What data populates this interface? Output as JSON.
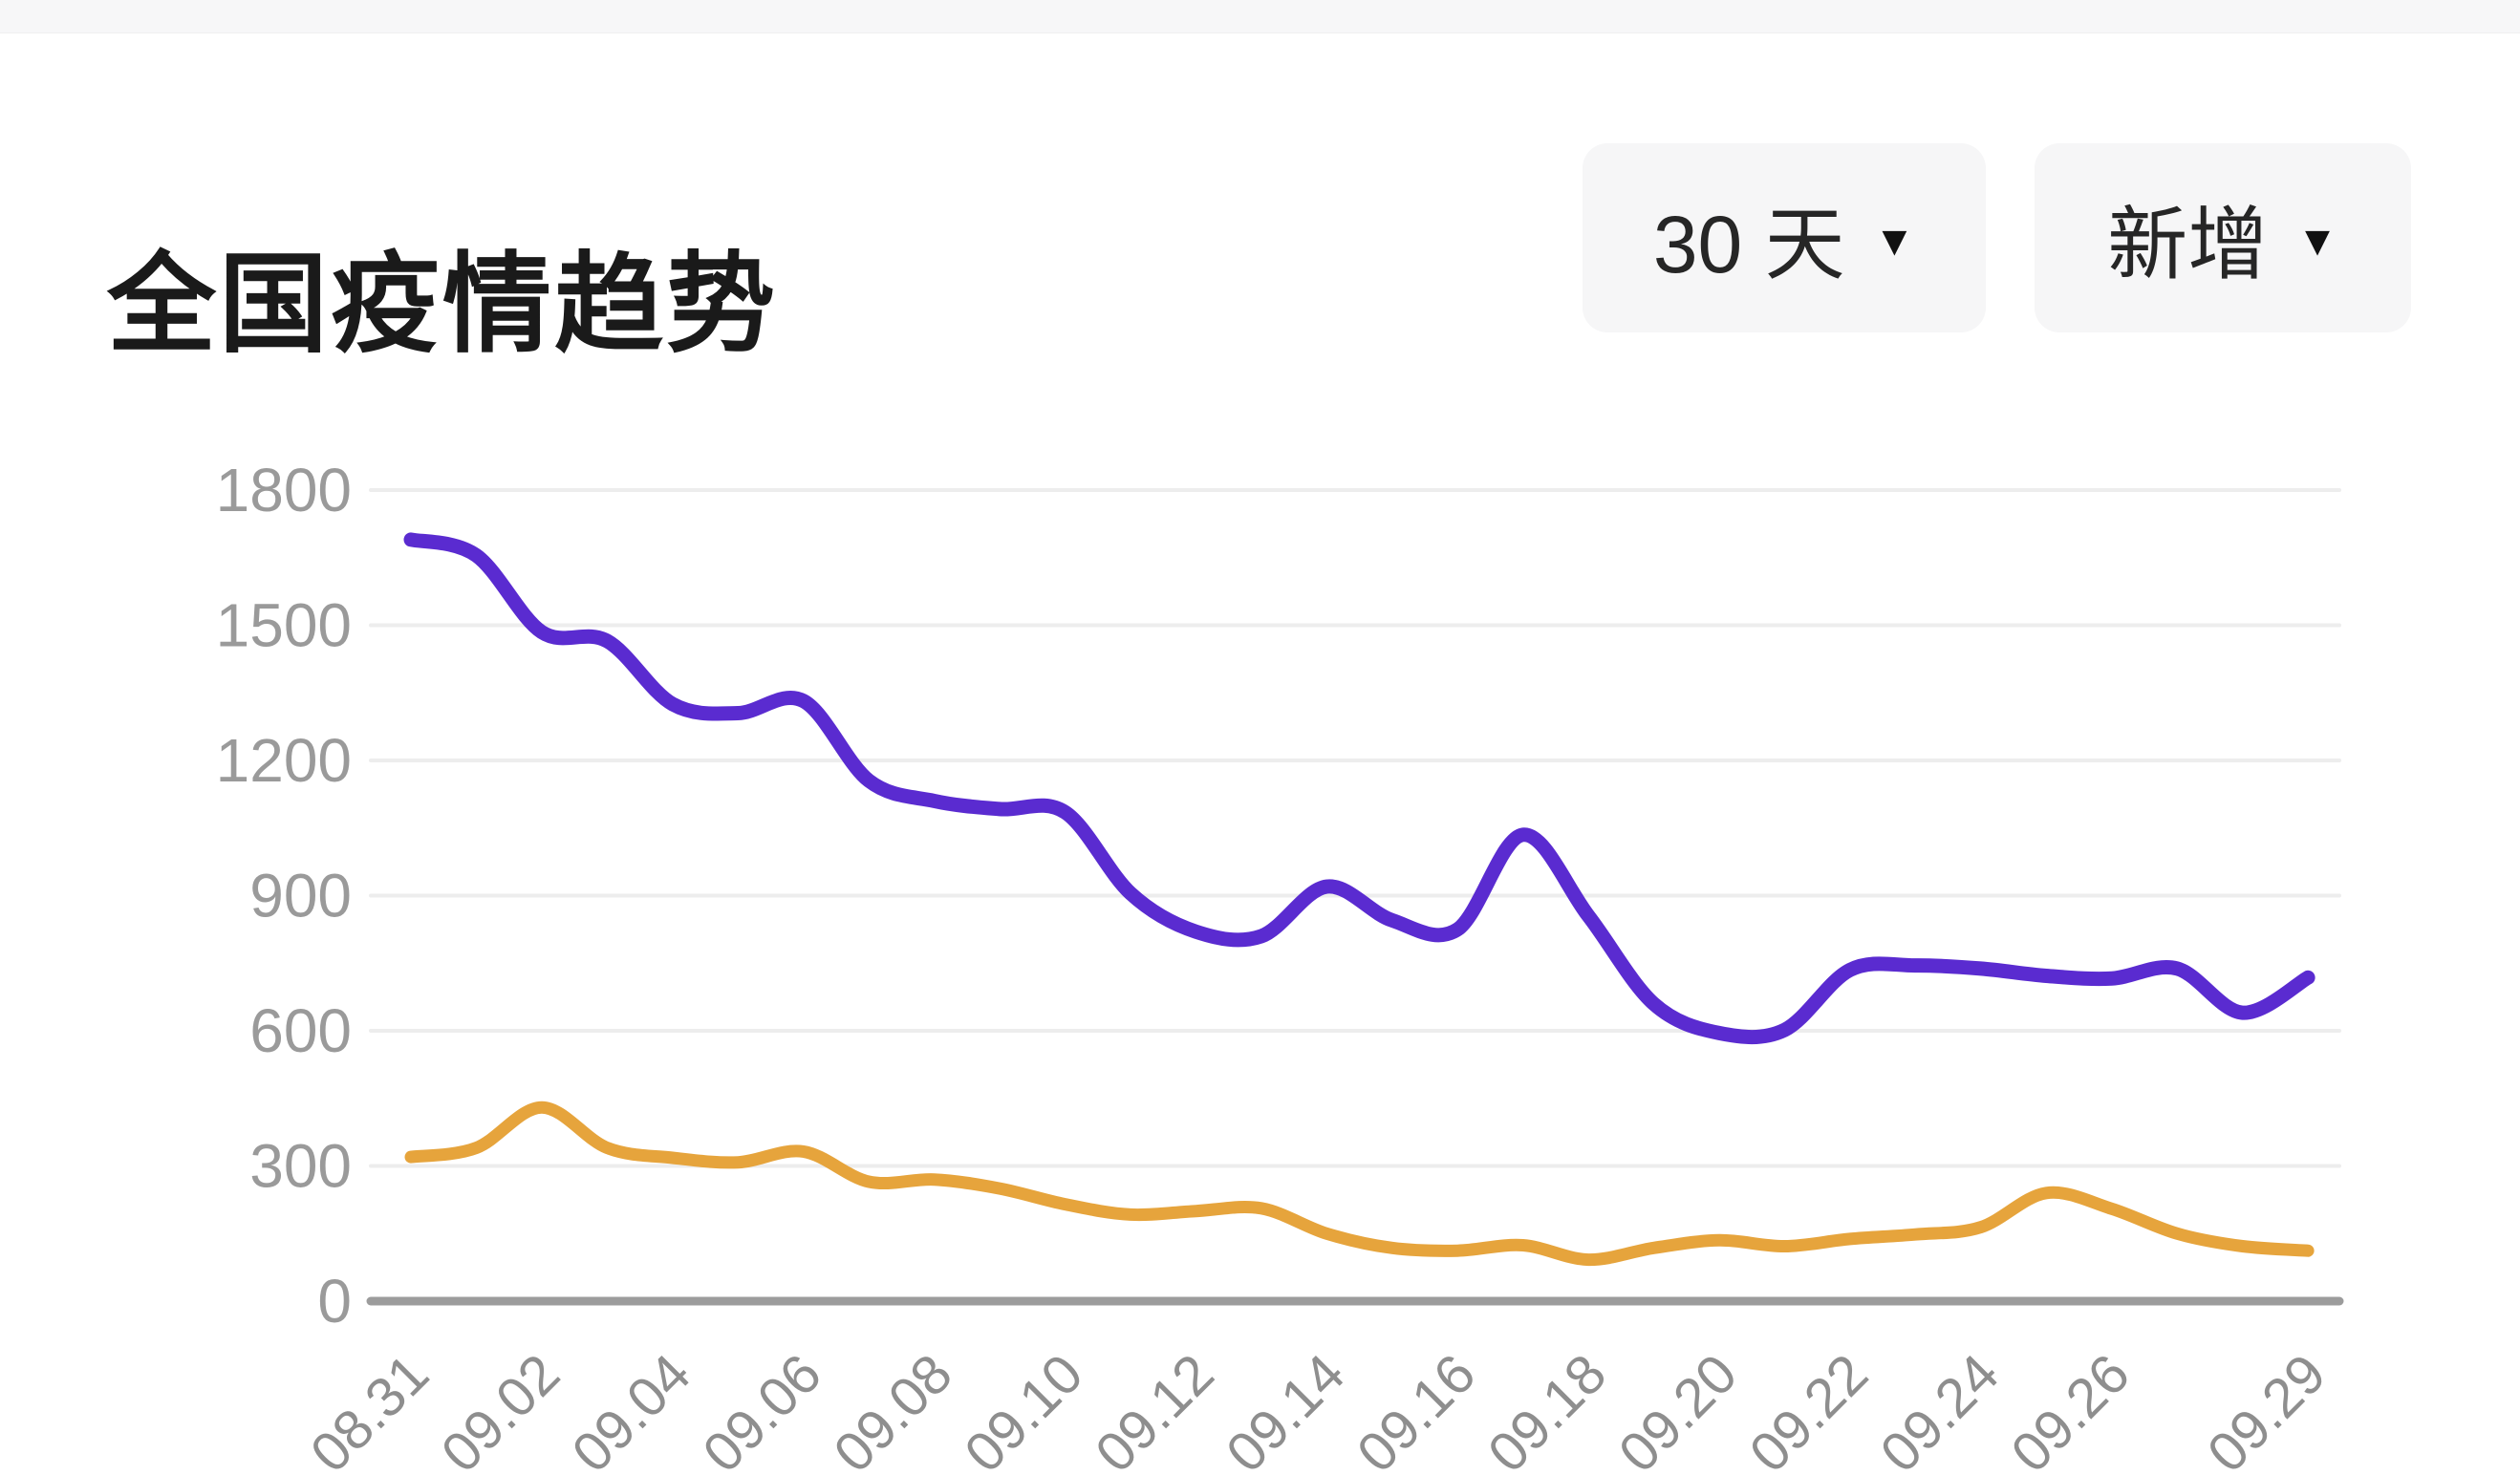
{
  "header": {
    "title": "全国疫情趋势"
  },
  "controls": {
    "range_dropdown": {
      "label": "30 天",
      "caret": "▼"
    },
    "metric_dropdown": {
      "label": "新增",
      "caret": "▼"
    }
  },
  "colors": {
    "purple_line": "#5a2bd0",
    "orange_line": "#e6a43c",
    "gridline": "#ededed",
    "zero_axis": "#9c9c9c",
    "y_label": "#9a9a9a",
    "x_label": "#8e8e8e",
    "title_text": "#1a1a1a",
    "button_bg": "#f6f6f7",
    "top_strip": "#f7f7f8"
  },
  "chart_data": {
    "type": "line",
    "title": "全国疫情趋势",
    "xlabel": "",
    "ylabel": "",
    "ylim": [
      0,
      1800
    ],
    "grid": true,
    "legend_position": "none",
    "smooth": true,
    "x": [
      "08.31",
      "09.01",
      "09.02",
      "09.03",
      "09.04",
      "09.05",
      "09.06",
      "09.07",
      "09.08",
      "09.09",
      "09.10",
      "09.11",
      "09.12",
      "09.13",
      "09.14",
      "09.15",
      "09.16",
      "09.17",
      "09.18",
      "09.19",
      "09.20",
      "09.21",
      "09.22",
      "09.23",
      "09.24",
      "09.25",
      "09.26",
      "09.27",
      "09.28",
      "09.29"
    ],
    "x_tick_labels": [
      "08.31",
      "09.02",
      "09.04",
      "09.06",
      "09.08",
      "09.10",
      "09.12",
      "09.14",
      "09.16",
      "09.18",
      "09.20",
      "09.22",
      "09.24",
      "09.26",
      "09.29"
    ],
    "y_ticks": [
      0,
      300,
      600,
      900,
      1200,
      1500,
      1800
    ],
    "series": [
      {
        "name": "purple-line",
        "color": "#5a2bd0",
        "values": [
          1690,
          1655,
          1485,
          1465,
          1325,
          1305,
          1332,
          1155,
          1110,
          1092,
          1085,
          905,
          820,
          810,
          920,
          845,
          825,
          1035,
          855,
          660,
          595,
          602,
          735,
          745,
          738,
          722,
          716,
          738,
          640,
          718
        ]
      },
      {
        "name": "orange-line",
        "color": "#e6a43c",
        "values": [
          320,
          340,
          430,
          340,
          318,
          308,
          332,
          265,
          270,
          250,
          215,
          192,
          200,
          206,
          150,
          118,
          112,
          124,
          92,
          118,
          135,
          122,
          138,
          148,
          164,
          240,
          205,
          150,
          122,
          112
        ]
      }
    ]
  }
}
